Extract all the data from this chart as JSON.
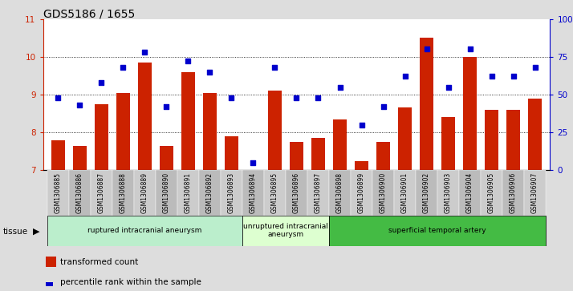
{
  "title": "GDS5186 / 1655",
  "samples": [
    "GSM1306885",
    "GSM1306886",
    "GSM1306887",
    "GSM1306888",
    "GSM1306889",
    "GSM1306890",
    "GSM1306891",
    "GSM1306892",
    "GSM1306893",
    "GSM1306894",
    "GSM1306895",
    "GSM1306896",
    "GSM1306897",
    "GSM1306898",
    "GSM1306899",
    "GSM1306900",
    "GSM1306901",
    "GSM1306902",
    "GSM1306903",
    "GSM1306904",
    "GSM1306905",
    "GSM1306906",
    "GSM1306907"
  ],
  "bar_values": [
    7.8,
    7.65,
    8.75,
    9.05,
    9.85,
    7.65,
    9.6,
    9.05,
    7.9,
    7.0,
    9.1,
    7.75,
    7.85,
    8.35,
    7.25,
    7.75,
    8.65,
    10.5,
    8.4,
    10.0,
    8.6,
    8.6,
    8.9
  ],
  "dot_values": [
    48,
    43,
    58,
    68,
    78,
    42,
    72,
    65,
    48,
    5,
    68,
    48,
    48,
    55,
    30,
    42,
    62,
    80,
    55,
    80,
    62,
    62,
    68
  ],
  "ylim_left": [
    7,
    11
  ],
  "ylim_right": [
    0,
    100
  ],
  "yticks_left": [
    7,
    8,
    9,
    10,
    11
  ],
  "yticks_right": [
    0,
    25,
    50,
    75,
    100
  ],
  "ytick_labels_right": [
    "0",
    "25",
    "50",
    "75",
    "100%"
  ],
  "bar_color": "#cc2200",
  "dot_color": "#0000cc",
  "groups": [
    {
      "label": "ruptured intracranial aneurysm",
      "start": 0,
      "end": 9,
      "color": "#bbeecc"
    },
    {
      "label": "unruptured intracranial\naneurysm",
      "start": 9,
      "end": 13,
      "color": "#ddffd0"
    },
    {
      "label": "superficial temporal artery",
      "start": 13,
      "end": 23,
      "color": "#44bb44"
    }
  ],
  "tissue_label": "tissue",
  "legend_bar_label": "transformed count",
  "legend_dot_label": "percentile rank within the sample",
  "background_color": "#dddddd",
  "plot_background": "#ffffff",
  "title_fontsize": 10,
  "tick_fontsize": 7.5,
  "axis_label_color_left": "#cc2200",
  "axis_label_color_right": "#0000cc",
  "xtick_bg_even": "#cccccc",
  "xtick_bg_odd": "#bbbbbb"
}
